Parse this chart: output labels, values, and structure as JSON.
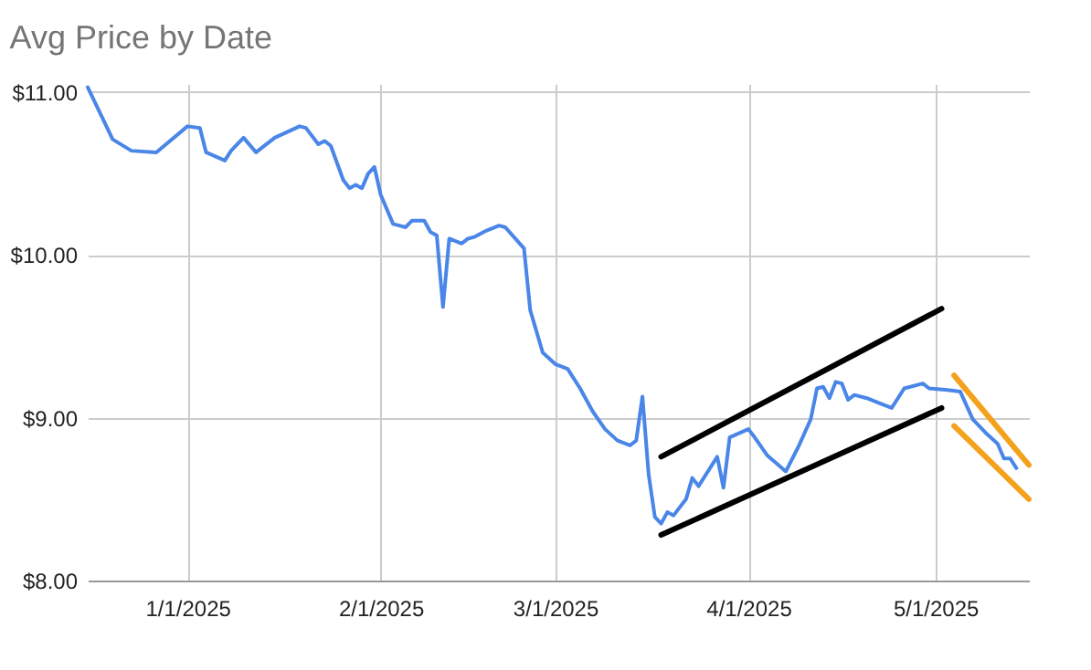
{
  "chart_data": {
    "type": "line",
    "title": "Avg Price by Date",
    "xlim": [
      "2024-12-16",
      "2025-05-16"
    ],
    "xticks": [
      {
        "value": "2025-01-01",
        "label": "1/1/2025"
      },
      {
        "value": "2025-02-01",
        "label": "2/1/2025"
      },
      {
        "value": "2025-03-01",
        "label": "3/1/2025"
      },
      {
        "value": "2025-04-01",
        "label": "4/1/2025"
      },
      {
        "value": "2025-05-01",
        "label": "5/1/2025"
      }
    ],
    "ylim": [
      8,
      11.05
    ],
    "yticks": [
      {
        "value": 8,
        "label": "$8.00"
      },
      {
        "value": 9,
        "label": "$9.00"
      },
      {
        "value": 10,
        "label": "$10.00"
      },
      {
        "value": 11,
        "label": "$11.00"
      }
    ],
    "grid": true,
    "line_style": "solid",
    "series": [
      {
        "color": "#4a86e8",
        "x": [
          "2024-12-16",
          "2024-12-20",
          "2024-12-23",
          "2024-12-27",
          "2025-01-01",
          "2025-01-03",
          "2025-01-04",
          "2025-01-07",
          "2025-01-08",
          "2025-01-10",
          "2025-01-12",
          "2025-01-15",
          "2025-01-19",
          "2025-01-20",
          "2025-01-22",
          "2025-01-23",
          "2025-01-24",
          "2025-01-26",
          "2025-01-27",
          "2025-01-28",
          "2025-01-29",
          "2025-01-30",
          "2025-01-31",
          "2025-02-01",
          "2025-02-03",
          "2025-02-04",
          "2025-02-05",
          "2025-02-06",
          "2025-02-08",
          "2025-02-09",
          "2025-02-10",
          "2025-02-11",
          "2025-02-12",
          "2025-02-14",
          "2025-02-15",
          "2025-02-16",
          "2025-02-18",
          "2025-02-20",
          "2025-02-21",
          "2025-02-24",
          "2025-02-25",
          "2025-02-27",
          "2025-03-01",
          "2025-03-03",
          "2025-03-05",
          "2025-03-07",
          "2025-03-09",
          "2025-03-11",
          "2025-03-13",
          "2025-03-14",
          "2025-03-15",
          "2025-03-16",
          "2025-03-17",
          "2025-03-18",
          "2025-03-19",
          "2025-03-20",
          "2025-03-22",
          "2025-03-23",
          "2025-03-24",
          "2025-03-27",
          "2025-03-28",
          "2025-03-29",
          "2025-04-01",
          "2025-04-02",
          "2025-04-04",
          "2025-04-07",
          "2025-04-09",
          "2025-04-11",
          "2025-04-12",
          "2025-04-13",
          "2025-04-14",
          "2025-04-15",
          "2025-04-16",
          "2025-04-17",
          "2025-04-18",
          "2025-04-20",
          "2025-04-22",
          "2025-04-24",
          "2025-04-26",
          "2025-04-29",
          "2025-04-30",
          "2025-05-03",
          "2025-05-05",
          "2025-05-07",
          "2025-05-09",
          "2025-05-11",
          "2025-05-12",
          "2025-05-13",
          "2025-05-14"
        ],
        "values": [
          11.03,
          10.71,
          10.64,
          10.63,
          10.79,
          10.78,
          10.63,
          10.58,
          10.64,
          10.72,
          10.63,
          10.72,
          10.79,
          10.78,
          10.68,
          10.7,
          10.67,
          10.46,
          10.41,
          10.43,
          10.41,
          10.5,
          10.54,
          10.37,
          10.19,
          10.18,
          10.17,
          10.21,
          10.21,
          10.14,
          10.12,
          9.68,
          10.1,
          10.07,
          10.1,
          10.11,
          10.15,
          10.18,
          10.17,
          10.04,
          9.66,
          9.4,
          9.33,
          9.3,
          9.18,
          9.04,
          8.93,
          8.86,
          8.83,
          8.86,
          9.13,
          8.65,
          8.39,
          8.35,
          8.42,
          8.4,
          8.5,
          8.63,
          8.58,
          8.76,
          8.57,
          8.88,
          8.93,
          8.88,
          8.77,
          8.67,
          8.82,
          8.99,
          9.18,
          9.19,
          9.12,
          9.22,
          9.21,
          9.11,
          9.14,
          9.12,
          9.09,
          9.06,
          9.18,
          9.21,
          9.18,
          9.17,
          9.16,
          8.99,
          8.91,
          8.84,
          8.75,
          8.75,
          8.69
        ]
      },
      {
        "type": "line",
        "color": "#000000",
        "x": [
          "2025-03-18",
          "2025-05-02"
        ],
        "values": [
          8.76,
          9.67
        ]
      },
      {
        "type": "line",
        "color": "#000000",
        "x": [
          "2025-03-18",
          "2025-05-02"
        ],
        "values": [
          8.28,
          9.06
        ]
      },
      {
        "type": "line",
        "color": "#f4a11c",
        "x": [
          "2025-05-04",
          "2025-05-16"
        ],
        "values": [
          9.26,
          8.71
        ]
      },
      {
        "type": "line",
        "color": "#f4a11c",
        "x": [
          "2025-05-04",
          "2025-05-16"
        ],
        "values": [
          8.95,
          8.5
        ]
      }
    ]
  }
}
